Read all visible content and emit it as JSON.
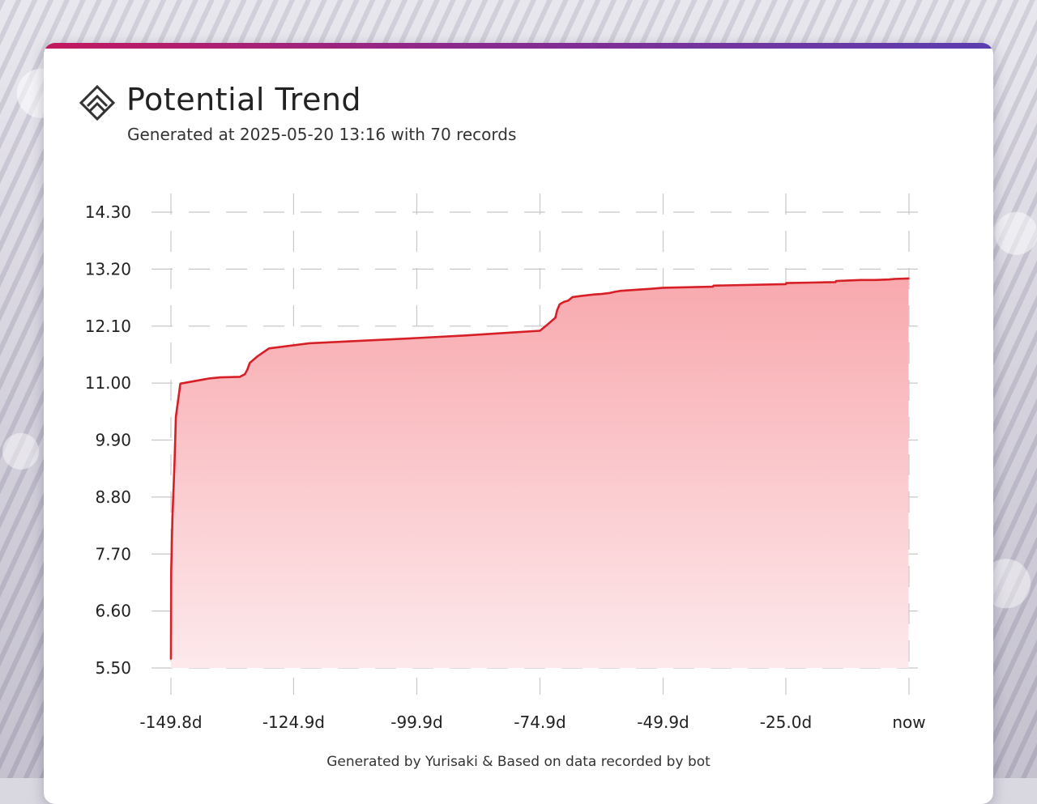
{
  "header": {
    "title": "Potential Trend",
    "subtitle": "Generated at 2025-05-20 13:16 with 70 records",
    "logo_icon": "layered-chevron-up-icon"
  },
  "footer": {
    "text": "Generated by Yurisaki & Based on data recorded by bot"
  },
  "colors": {
    "accent_start": "#c3185f",
    "accent_end": "#5a3eb0",
    "line": "#d61f26",
    "fill_top": "#f8a9ae",
    "fill_bottom": "#fde9ec",
    "grid": "#c8c8c8"
  },
  "chart_data": {
    "type": "area",
    "title": "Potential Trend",
    "xlabel": "",
    "ylabel": "",
    "x_ticks": [
      {
        "value": -149.8,
        "label": "-149.8d"
      },
      {
        "value": -124.9,
        "label": "-124.9d"
      },
      {
        "value": -99.9,
        "label": "-99.9d"
      },
      {
        "value": -74.9,
        "label": "-74.9d"
      },
      {
        "value": -49.9,
        "label": "-49.9d"
      },
      {
        "value": -25.0,
        "label": "-25.0d"
      },
      {
        "value": 0,
        "label": "now"
      }
    ],
    "y_ticks": [
      5.5,
      6.6,
      7.7,
      8.8,
      9.9,
      11.0,
      12.1,
      13.2,
      14.3
    ],
    "y_tick_labels": [
      "5.50",
      "6.60",
      "7.70",
      "8.80",
      "9.90",
      "11.00",
      "12.10",
      "13.20",
      "14.30"
    ],
    "xlim": [
      -149.8,
      0
    ],
    "ylim": [
      5.5,
      14.3
    ],
    "grid": true,
    "grid_style": "dashed",
    "series": [
      {
        "x": [
          -149.8,
          -149.75,
          -149.5,
          -149.1,
          -148.8,
          -147.9,
          -142.0,
          -139.8,
          -135.8,
          -134.8,
          -134.3,
          -133.8,
          -132.2,
          -129.9,
          -121.6,
          -99.9,
          -90.0,
          -80.0,
          -74.9,
          -73.5,
          -71.8,
          -71.4,
          -70.9,
          -70.0,
          -69.2,
          -68.3,
          -66.6,
          -63.9,
          -62.4,
          -60.7,
          -59.8,
          -58.5,
          -52.4,
          -49.9,
          -39.8,
          -39.7,
          -25.0,
          -24.9,
          -19.7,
          -14.9,
          -14.8,
          -12.3,
          -9.8,
          -6.9,
          -4.1,
          -2.9,
          -0.1
        ],
        "y": [
          5.68,
          7.35,
          8.4,
          9.4,
          10.35,
          10.99,
          11.09,
          11.11,
          11.12,
          11.17,
          11.26,
          11.39,
          11.52,
          11.67,
          11.77,
          11.87,
          11.92,
          11.98,
          12.01,
          12.12,
          12.26,
          12.41,
          12.52,
          12.57,
          12.59,
          12.66,
          12.68,
          12.71,
          12.72,
          12.74,
          12.76,
          12.78,
          12.82,
          12.84,
          12.86,
          12.88,
          12.91,
          12.93,
          12.94,
          12.95,
          12.97,
          12.98,
          12.99,
          12.99,
          13.0,
          13.01,
          13.02
        ]
      }
    ]
  }
}
